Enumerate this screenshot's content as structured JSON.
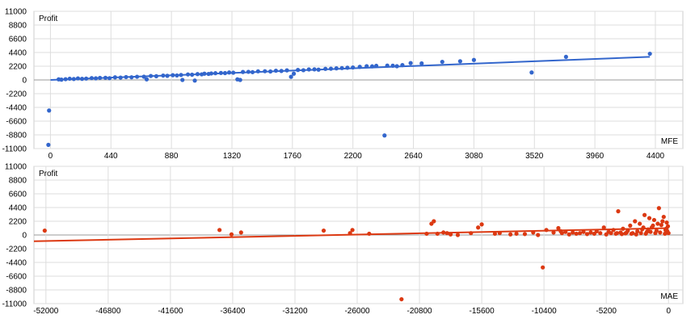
{
  "chart_data": [
    {
      "type": "scatter",
      "id": "mfe",
      "ylabel": "Profit",
      "xlabel": "MFE",
      "xlim": [
        -120,
        4600
      ],
      "ylim": [
        -11000,
        11000
      ],
      "xticks": [
        0,
        440,
        880,
        1320,
        1760,
        2200,
        2640,
        3080,
        3520,
        3960,
        4400
      ],
      "yticks": [
        11000,
        8800,
        6600,
        4400,
        2200,
        0,
        -2200,
        -4400,
        -6600,
        -8800,
        -11000
      ],
      "grid": true,
      "color": "#3366cc",
      "trendline": [
        [
          0,
          0
        ],
        [
          4360,
          3700
        ]
      ],
      "points": [
        [
          -10,
          -4900
        ],
        [
          -15,
          -10400
        ],
        [
          60,
          100
        ],
        [
          80,
          50
        ],
        [
          110,
          120
        ],
        [
          140,
          200
        ],
        [
          170,
          150
        ],
        [
          200,
          250
        ],
        [
          230,
          180
        ],
        [
          260,
          220
        ],
        [
          300,
          300
        ],
        [
          330,
          260
        ],
        [
          360,
          330
        ],
        [
          400,
          350
        ],
        [
          430,
          280
        ],
        [
          470,
          420
        ],
        [
          510,
          380
        ],
        [
          550,
          460
        ],
        [
          590,
          430
        ],
        [
          630,
          510
        ],
        [
          680,
          520
        ],
        [
          700,
          100
        ],
        [
          730,
          640
        ],
        [
          770,
          600
        ],
        [
          820,
          700
        ],
        [
          850,
          660
        ],
        [
          890,
          760
        ],
        [
          920,
          720
        ],
        [
          950,
          800
        ],
        [
          960,
          0
        ],
        [
          1000,
          880
        ],
        [
          1030,
          840
        ],
        [
          1050,
          -100
        ],
        [
          1070,
          940
        ],
        [
          1100,
          900
        ],
        [
          1120,
          1000
        ],
        [
          1150,
          960
        ],
        [
          1170,
          1040
        ],
        [
          1200,
          1080
        ],
        [
          1240,
          1120
        ],
        [
          1270,
          1100
        ],
        [
          1300,
          1200
        ],
        [
          1330,
          1160
        ],
        [
          1360,
          100
        ],
        [
          1380,
          0
        ],
        [
          1400,
          1280
        ],
        [
          1440,
          1300
        ],
        [
          1470,
          1250
        ],
        [
          1510,
          1380
        ],
        [
          1560,
          1400
        ],
        [
          1600,
          1360
        ],
        [
          1640,
          1480
        ],
        [
          1680,
          1440
        ],
        [
          1720,
          1540
        ],
        [
          1750,
          500
        ],
        [
          1770,
          1000
        ],
        [
          1800,
          1600
        ],
        [
          1840,
          1560
        ],
        [
          1880,
          1680
        ],
        [
          1920,
          1700
        ],
        [
          1950,
          1650
        ],
        [
          2000,
          1780
        ],
        [
          2040,
          1800
        ],
        [
          2080,
          1860
        ],
        [
          2120,
          1900
        ],
        [
          2160,
          1960
        ],
        [
          2200,
          2000
        ],
        [
          2250,
          2100
        ],
        [
          2300,
          2200
        ],
        [
          2340,
          2180
        ],
        [
          2370,
          2260
        ],
        [
          2430,
          -8900
        ],
        [
          2450,
          2300
        ],
        [
          2490,
          2280
        ],
        [
          2520,
          2200
        ],
        [
          2560,
          2380
        ],
        [
          2620,
          2700
        ],
        [
          2700,
          2650
        ],
        [
          2850,
          2900
        ],
        [
          2980,
          3000
        ],
        [
          3080,
          3200
        ],
        [
          3500,
          1200
        ],
        [
          3750,
          3700
        ],
        [
          4360,
          4200
        ]
      ]
    },
    {
      "type": "scatter",
      "id": "mae",
      "ylabel": "Profit",
      "xlabel": "MAE",
      "xlim": [
        -53000,
        1200
      ],
      "ylim": [
        -11000,
        11000
      ],
      "xticks": [
        -52000,
        -46800,
        -41600,
        -36400,
        -31200,
        -26000,
        -20800,
        -15600,
        -10400,
        -5200,
        0
      ],
      "yticks": [
        11000,
        8800,
        6600,
        4400,
        2200,
        0,
        -2200,
        -4400,
        -6600,
        -8800,
        -11000
      ],
      "grid": true,
      "color": "#dc3912",
      "trendline": [
        [
          -53000,
          -1000
        ],
        [
          0,
          1100
        ]
      ],
      "points": [
        [
          -52100,
          700
        ],
        [
          -37500,
          800
        ],
        [
          -36500,
          100
        ],
        [
          -35700,
          400
        ],
        [
          -28800,
          700
        ],
        [
          -26600,
          300
        ],
        [
          -26400,
          800
        ],
        [
          -25000,
          200
        ],
        [
          -22300,
          -10300
        ],
        [
          -20200,
          200
        ],
        [
          -19800,
          1800
        ],
        [
          -19600,
          2200
        ],
        [
          -19300,
          200
        ],
        [
          -18800,
          400
        ],
        [
          -18500,
          300
        ],
        [
          -18200,
          100
        ],
        [
          -17600,
          0
        ],
        [
          -16500,
          300
        ],
        [
          -15900,
          1200
        ],
        [
          -15600,
          1700
        ],
        [
          -14500,
          200
        ],
        [
          -14100,
          300
        ],
        [
          -13200,
          100
        ],
        [
          -12700,
          200
        ],
        [
          -12000,
          150
        ],
        [
          -11300,
          400
        ],
        [
          -10900,
          0
        ],
        [
          -10500,
          -5200
        ],
        [
          -10200,
          800
        ],
        [
          -9600,
          400
        ],
        [
          -9200,
          1100
        ],
        [
          -9000,
          600
        ],
        [
          -8900,
          300
        ],
        [
          -8600,
          500
        ],
        [
          -8300,
          100
        ],
        [
          -8000,
          400
        ],
        [
          -7700,
          200
        ],
        [
          -7400,
          300
        ],
        [
          -7100,
          500
        ],
        [
          -6800,
          150
        ],
        [
          -6500,
          400
        ],
        [
          -6200,
          200
        ],
        [
          -6000,
          600
        ],
        [
          -5700,
          300
        ],
        [
          -5400,
          1200
        ],
        [
          -5200,
          100
        ],
        [
          -5000,
          500
        ],
        [
          -4800,
          300
        ],
        [
          -4600,
          800
        ],
        [
          -4400,
          200
        ],
        [
          -4200,
          3800
        ],
        [
          -4000,
          400
        ],
        [
          -3800,
          1000
        ],
        [
          -3600,
          250
        ],
        [
          -3400,
          700
        ],
        [
          -3200,
          1500
        ],
        [
          -3000,
          300
        ],
        [
          -2800,
          2200
        ],
        [
          -2600,
          600
        ],
        [
          -2400,
          1800
        ],
        [
          -2200,
          900
        ],
        [
          -2000,
          3200
        ],
        [
          -1800,
          500
        ],
        [
          -1600,
          2700
        ],
        [
          -1400,
          1200
        ],
        [
          -1200,
          2400
        ],
        [
          -1000,
          700
        ],
        [
          -800,
          4300
        ],
        [
          -600,
          1600
        ],
        [
          -400,
          2900
        ],
        [
          -200,
          1000
        ],
        [
          -150,
          2000
        ],
        [
          -100,
          600
        ],
        [
          -50,
          1400
        ],
        [
          0,
          300
        ],
        [
          -300,
          200
        ],
        [
          -700,
          400
        ],
        [
          -1100,
          300
        ],
        [
          -1500,
          500
        ],
        [
          -1900,
          200
        ],
        [
          -2300,
          300
        ],
        [
          -2700,
          100
        ],
        [
          -3100,
          200
        ],
        [
          -3500,
          400
        ],
        [
          -3900,
          150
        ],
        [
          -4300,
          300
        ],
        [
          -900,
          1800
        ],
        [
          -500,
          2200
        ],
        [
          -250,
          800
        ],
        [
          -1300,
          1500
        ],
        [
          -1700,
          900
        ],
        [
          -2100,
          1200
        ]
      ]
    }
  ]
}
